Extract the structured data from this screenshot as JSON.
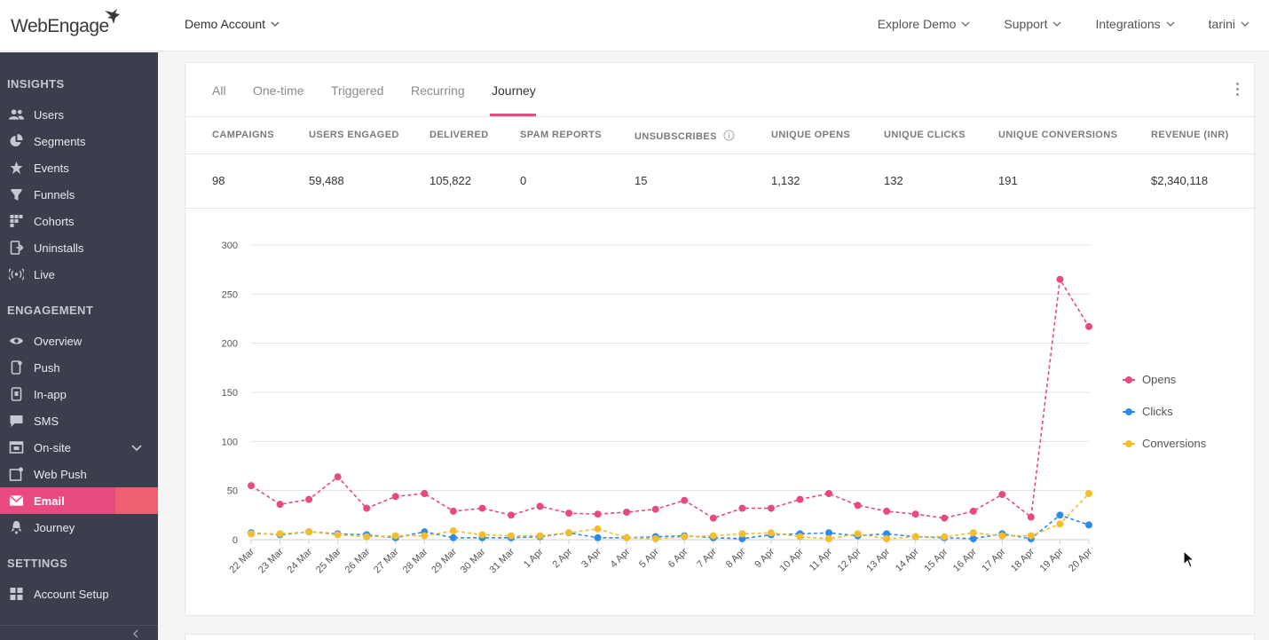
{
  "brand": {
    "logo_text": "WebEngage",
    "accent": "#e84a7f"
  },
  "topbar": {
    "account": "Demo Account",
    "nav": [
      "Explore Demo",
      "Support",
      "Integrations",
      "tarini"
    ]
  },
  "sidebar": {
    "sections": {
      "insights": "INSIGHTS",
      "engagement": "ENGAGEMENT",
      "settings": "SETTINGS"
    },
    "items": [
      {
        "label": "Users",
        "icon": "users-icon"
      },
      {
        "label": "Segments",
        "icon": "pie-chart-icon"
      },
      {
        "label": "Events",
        "icon": "star-icon"
      },
      {
        "label": "Funnels",
        "icon": "funnel-icon"
      },
      {
        "label": "Cohorts",
        "icon": "grid-icon"
      },
      {
        "label": "Uninstalls",
        "icon": "uninstall-icon"
      },
      {
        "label": "Live",
        "icon": "broadcast-icon"
      },
      {
        "label": "Overview",
        "icon": "eye-icon"
      },
      {
        "label": "Push",
        "icon": "mobile-icon"
      },
      {
        "label": "In-app",
        "icon": "in-app-icon"
      },
      {
        "label": "SMS",
        "icon": "sms-icon"
      },
      {
        "label": "On-site",
        "icon": "browser-icon"
      },
      {
        "label": "Web Push",
        "icon": "web-push-icon"
      },
      {
        "label": "Email",
        "icon": "envelope-icon"
      },
      {
        "label": "Journey",
        "icon": "journey-icon"
      },
      {
        "label": "Account Setup",
        "icon": "account-grid-icon"
      }
    ]
  },
  "tabs": [
    "All",
    "One-time",
    "Triggered",
    "Recurring",
    "Journey"
  ],
  "active_tab": "Journey",
  "metrics": {
    "headers": [
      "CAMPAIGNS",
      "USERS ENGAGED",
      "DELIVERED",
      "SPAM REPORTS",
      "UNSUBSCRIBES",
      "UNIQUE OPENS",
      "UNIQUE CLICKS",
      "UNIQUE CONVERSIONS",
      "REVENUE (INR)"
    ],
    "values": [
      "98",
      "59,488",
      "105,822",
      "0",
      "15",
      "1,132",
      "132",
      "191",
      "$2,340,118"
    ]
  },
  "chart_data": {
    "type": "line",
    "categories": [
      "22 Mar",
      "23 Mar",
      "24 Mar",
      "25 Mar",
      "26 Mar",
      "27 Mar",
      "28 Mar",
      "29 Mar",
      "30 Mar",
      "31 Mar",
      "1 Apr",
      "2 Apr",
      "3 Apr",
      "4 Apr",
      "5 Apr",
      "6 Apr",
      "7 Apr",
      "8 Apr",
      "9 Apr",
      "10 Apr",
      "11 Apr",
      "12 Apr",
      "13 Apr",
      "14 Apr",
      "15 Apr",
      "16 Apr",
      "17 Apr",
      "18 Apr",
      "19 Apr",
      "20 Apr"
    ],
    "series": [
      {
        "name": "Opens",
        "color": "#e84a7f",
        "values": [
          55,
          36,
          41,
          64,
          32,
          44,
          47,
          29,
          32,
          25,
          34,
          27,
          26,
          28,
          31,
          40,
          22,
          32,
          32,
          41,
          47,
          35,
          29,
          26,
          22,
          29,
          46,
          23,
          265,
          217
        ]
      },
      {
        "name": "Clicks",
        "color": "#2d8ceb",
        "values": [
          7,
          5,
          8,
          6,
          5,
          2,
          8,
          2,
          2,
          2,
          3,
          7,
          2,
          2,
          3,
          4,
          2,
          1,
          5,
          6,
          7,
          4,
          6,
          3,
          2,
          1,
          6,
          1,
          25,
          15
        ]
      },
      {
        "name": "Conversions",
        "color": "#f5bd2e",
        "values": [
          6,
          6,
          8,
          5,
          3,
          4,
          4,
          9,
          5,
          4,
          4,
          7,
          11,
          2,
          1,
          3,
          4,
          6,
          7,
          3,
          1,
          6,
          1,
          3,
          3,
          7,
          4,
          4,
          16,
          47
        ]
      }
    ],
    "yticks": [
      "300",
      "250",
      "200",
      "150",
      "100",
      "50",
      "0"
    ],
    "ylim": [
      0,
      300
    ],
    "grid": true,
    "legend": "right"
  }
}
